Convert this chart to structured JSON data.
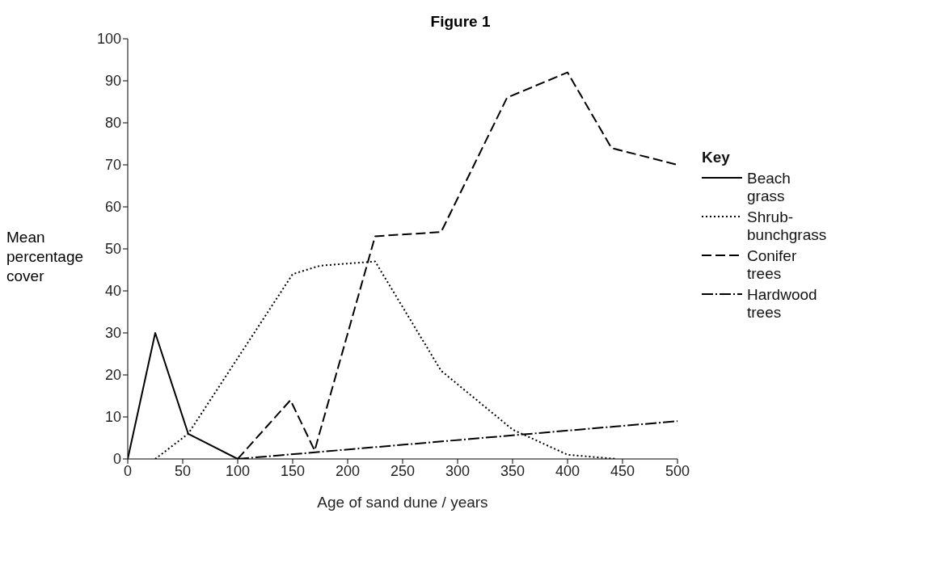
{
  "chart_data": {
    "type": "line",
    "title": "Figure 1",
    "xlabel": "Age of sand dune / years",
    "ylabel": "Mean percentage cover",
    "legend_title": "Key",
    "legend": "right",
    "marker": "none",
    "xlim": [
      0,
      500
    ],
    "xticks": [
      0,
      50,
      100,
      150,
      200,
      250,
      300,
      350,
      400,
      450,
      500
    ],
    "ylim": [
      0,
      100
    ],
    "yticks": [
      0,
      10,
      20,
      30,
      40,
      50,
      60,
      70,
      80,
      90,
      100
    ],
    "series": [
      {
        "name": "Beach grass",
        "color": "#000000",
        "line_style": "solid",
        "x": [
          0,
          25,
          55,
          100
        ],
        "values": [
          0,
          30,
          6,
          0
        ]
      },
      {
        "name": "Shrub-bunchgrass",
        "color": "#000000",
        "line_style": "dotted",
        "x": [
          25,
          55,
          150,
          175,
          225,
          285,
          350,
          400,
          445
        ],
        "values": [
          0,
          6,
          44,
          46,
          47,
          21,
          7,
          1,
          0
        ]
      },
      {
        "name": "Conifer trees",
        "color": "#000000",
        "line_style": "dashed",
        "x": [
          100,
          148,
          170,
          225,
          285,
          345,
          400,
          440,
          500
        ],
        "values": [
          0,
          14,
          2,
          53,
          54,
          86,
          92,
          74,
          70
        ]
      },
      {
        "name": "Hardwood trees",
        "color": "#000000",
        "line_style": "dashdot",
        "x": [
          100,
          500
        ],
        "values": [
          0,
          9
        ]
      }
    ]
  }
}
